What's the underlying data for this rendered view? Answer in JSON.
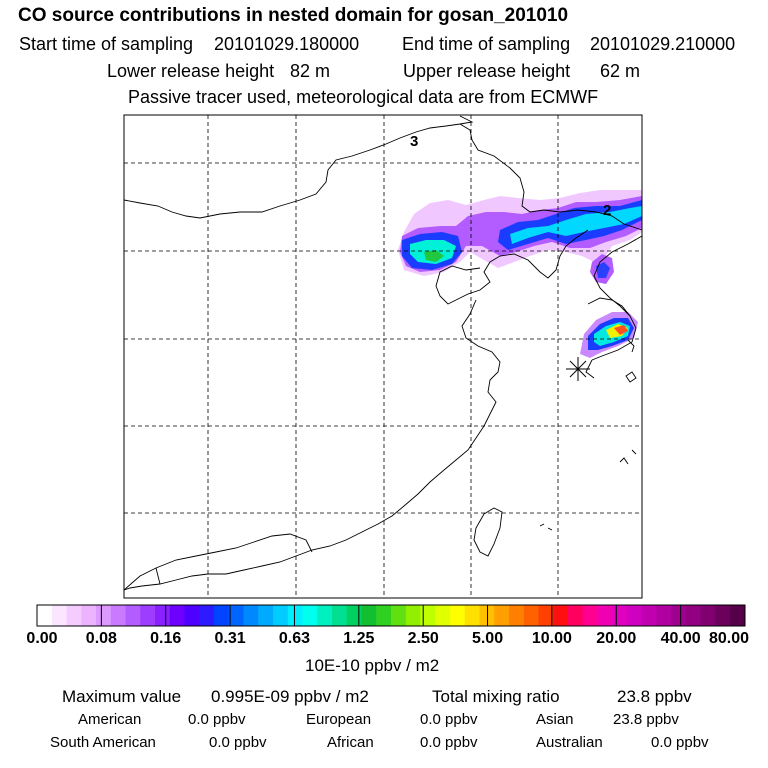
{
  "header": {
    "title": "CO  source contributions in nested domain for gosan_201010",
    "start_label": "Start time of sampling",
    "start_value": "20101029.180000",
    "end_label": "End time of sampling",
    "end_value": "20101029.210000",
    "lower_label": "Lower release height",
    "lower_value": "82 m",
    "upper_label": "Upper release height",
    "upper_value": "62 m",
    "note": "Passive tracer used, meteorological data are from ECMWF"
  },
  "map": {
    "contour_labels": [
      "3",
      "2"
    ],
    "receptor_marker": "station-star"
  },
  "colorbar": {
    "tick_labels": [
      "0.00",
      "0.08",
      "0.16",
      "0.31",
      "0.63",
      "1.25",
      "2.50",
      "5.00",
      "10.00",
      "20.00",
      "40.00",
      "80.00"
    ],
    "colors": [
      "#ffffff",
      "#fae6ff",
      "#f5ccff",
      "#eeb3ff",
      "#de99ff",
      "#c97aff",
      "#b35cff",
      "#9e3dff",
      "#8a1fff",
      "#6e00ff",
      "#4d00ff",
      "#2d1aff",
      "#0044ff",
      "#0066ff",
      "#0088ff",
      "#00aaff",
      "#00ccff",
      "#00eeff",
      "#00ffee",
      "#00f0c0",
      "#00e090",
      "#00d060",
      "#10c030",
      "#30d020",
      "#60e010",
      "#90f000",
      "#c0ff00",
      "#e0ff00",
      "#ffff00",
      "#ffe000",
      "#ffc000",
      "#ffa000",
      "#ff8000",
      "#ff6000",
      "#ff4000",
      "#ff1010",
      "#ff0060",
      "#ff0090",
      "#f000b0",
      "#e000c0",
      "#d000c0",
      "#c000b0",
      "#b000a0",
      "#a00090",
      "#900080",
      "#800070",
      "#6a005a",
      "#550048"
    ],
    "units": "10E-10 ppbv / m2"
  },
  "stats": {
    "max_label": "Maximum value",
    "max_value": "0.995E-09 ppbv / m2",
    "total_label": "Total mixing ratio",
    "total_value": "23.8 ppbv"
  },
  "regions": [
    {
      "name": "American",
      "value": "0.0 ppbv"
    },
    {
      "name": "European",
      "value": "0.0 ppbv"
    },
    {
      "name": "Asian",
      "value": "23.8 ppbv"
    },
    {
      "name": "South American",
      "value": "0.0 ppbv"
    },
    {
      "name": "African",
      "value": "0.0 ppbv"
    },
    {
      "name": "Australian",
      "value": "0.0 ppbv"
    }
  ]
}
